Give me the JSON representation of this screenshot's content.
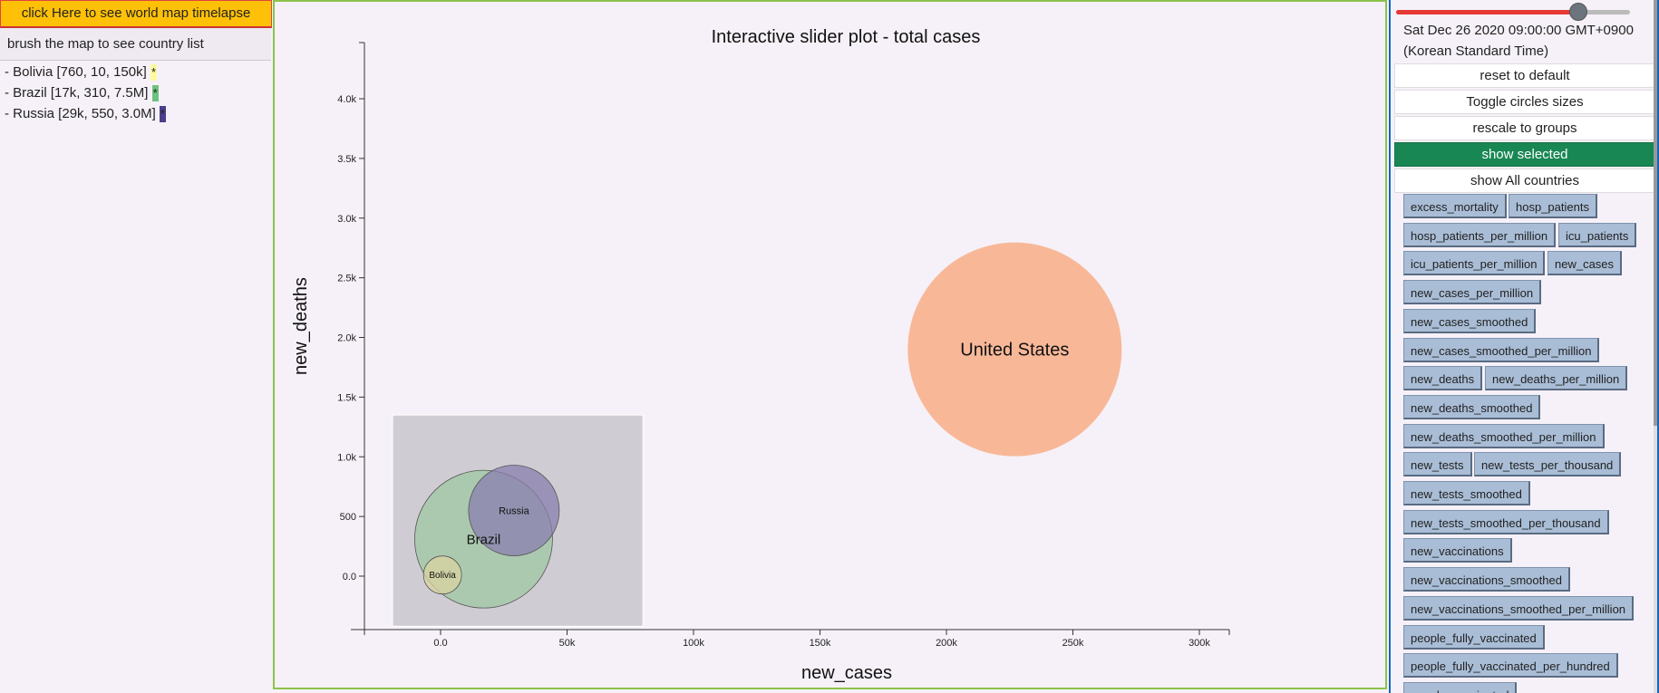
{
  "left": {
    "map_button": "click Here to see world map timelapse",
    "brush_hint": "brush the map to see country list",
    "countries": [
      {
        "label": "- Bolivia [760, 10, 150k]",
        "swatch": "*",
        "color": "#fffaa0"
      },
      {
        "label": "- Brazil [17k, 310, 7.5M]",
        "swatch": "*",
        "color": "#6ec27f"
      },
      {
        "label": "- Russia [29k, 550, 3.0M]",
        "swatch": "*",
        "color": "#4a3f8a"
      }
    ]
  },
  "chart_data": {
    "type": "scatter",
    "title": "Interactive slider plot - total cases",
    "xlabel": "new_cases",
    "ylabel": "new_deaths",
    "xlim": [
      -30000,
      300000
    ],
    "ylim": [
      -450,
      4420
    ],
    "x_ticks": [
      0,
      50000,
      100000,
      150000,
      200000,
      250000,
      300000
    ],
    "x_tick_labels": [
      "0.0",
      "50k",
      "100k",
      "150k",
      "200k",
      "250k",
      "300k"
    ],
    "y_ticks": [
      0,
      500,
      1000,
      1500,
      2000,
      2500,
      3000,
      3500,
      4000
    ],
    "y_tick_labels": [
      "0.0",
      "500",
      "1.0k",
      "1.5k",
      "2.0k",
      "2.5k",
      "3.0k",
      "3.5k",
      "4.0k"
    ],
    "brush": {
      "x": [
        -19000,
        80000
      ],
      "y": [
        -420,
        1350
      ]
    },
    "points": [
      {
        "name": "United States",
        "x": 227000,
        "y": 1900,
        "fill": "#f8b898",
        "stroke": "#f8b898"
      },
      {
        "name": "Brazil",
        "x": 17000,
        "y": 310,
        "fill": "#9fc7a3",
        "stroke": "#555555"
      },
      {
        "name": "Russia",
        "x": 29000,
        "y": 550,
        "fill": "#8a7eaf",
        "stroke": "#555555"
      },
      {
        "name": "Bolivia",
        "x": 760,
        "y": 10,
        "fill": "#d9d3a0",
        "stroke": "#555555"
      }
    ]
  },
  "right": {
    "slider_value": 0.78,
    "date_line1": "Sat Dec 26 2020 09:00:00 GMT+0900",
    "date_line2": "(Korean Standard Time)",
    "buttons": [
      {
        "label": "reset to default",
        "active": false
      },
      {
        "label": "Toggle circles sizes",
        "active": false
      },
      {
        "label": "rescale to groups",
        "active": false
      },
      {
        "label": "show selected",
        "active": true
      },
      {
        "label": "show All countries",
        "active": false
      }
    ],
    "variables": [
      "excess_mortality",
      "hosp_patients",
      "hosp_patients_per_million",
      "icu_patients",
      "icu_patients_per_million",
      "new_cases",
      "new_cases_per_million",
      "new_cases_smoothed",
      "new_cases_smoothed_per_million",
      "new_deaths",
      "new_deaths_per_million",
      "new_deaths_smoothed",
      "new_deaths_smoothed_per_million",
      "new_tests",
      "new_tests_per_thousand",
      "new_tests_smoothed",
      "new_tests_smoothed_per_thousand",
      "new_vaccinations",
      "new_vaccinations_smoothed",
      "new_vaccinations_smoothed_per_million",
      "people_fully_vaccinated",
      "people_fully_vaccinated_per_hundred",
      "people_vaccinated"
    ]
  }
}
